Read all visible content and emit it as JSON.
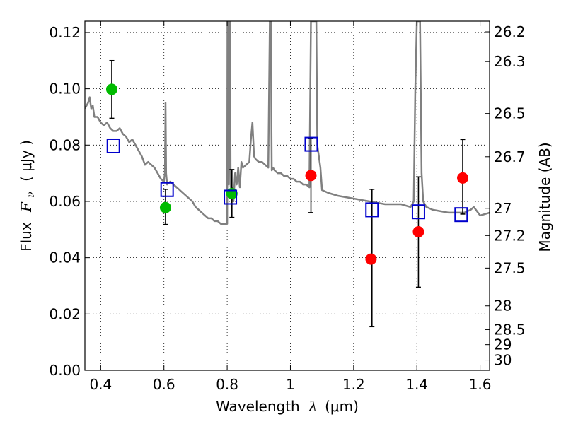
{
  "chart_data": {
    "type": "scatter",
    "xlabel": {
      "prefix": "Wavelength",
      "symbol": "λ",
      "unit": "(μm)"
    },
    "ylabel": {
      "prefix": "Flux",
      "symbol": "F",
      "subscript": "ν",
      "unit": "( μJy )"
    },
    "y2label": "Magnitude (AB)",
    "xlim": [
      0.35,
      1.63
    ],
    "ylim": [
      0.0,
      0.124
    ],
    "grid": true,
    "x_ticks": [
      "0.4",
      "0.6",
      "0.8",
      "1",
      "1.2",
      "1.4",
      "1.6"
    ],
    "x_tick_values": [
      0.4,
      0.6,
      0.8,
      1.0,
      1.2,
      1.4,
      1.6
    ],
    "y_ticks": [
      "0.00",
      "0.02",
      "0.04",
      "0.06",
      "0.08",
      "0.10",
      "0.12"
    ],
    "y_tick_values": [
      0.0,
      0.02,
      0.04,
      0.06,
      0.08,
      0.1,
      0.12
    ],
    "y2_ticks": [
      "26.2",
      "26.3",
      "26.5",
      "26.7",
      "27",
      "27.2",
      "27.5",
      "28",
      "28.5",
      "29",
      "30"
    ],
    "y2_tick_values": [
      26.2,
      26.3,
      26.5,
      26.7,
      27.0,
      27.2,
      27.5,
      28.0,
      28.5,
      29.0,
      30.0
    ],
    "y2_zero_point_mag": 23.9,
    "series": [
      {
        "kind": "line",
        "color": "#808080",
        "x": [
          0.35,
          0.36,
          0.365,
          0.37,
          0.375,
          0.38,
          0.39,
          0.4,
          0.41,
          0.42,
          0.43,
          0.44,
          0.45,
          0.46,
          0.47,
          0.48,
          0.49,
          0.5,
          0.51,
          0.52,
          0.53,
          0.54,
          0.55,
          0.56,
          0.57,
          0.58,
          0.59,
          0.6,
          0.603,
          0.605,
          0.607,
          0.61,
          0.62,
          0.63,
          0.64,
          0.65,
          0.66,
          0.67,
          0.68,
          0.69,
          0.7,
          0.71,
          0.72,
          0.73,
          0.74,
          0.75,
          0.76,
          0.77,
          0.78,
          0.79,
          0.8,
          0.801,
          0.803,
          0.805,
          0.807,
          0.809,
          0.811,
          0.815,
          0.82,
          0.825,
          0.83,
          0.835,
          0.84,
          0.845,
          0.85,
          0.86,
          0.87,
          0.875,
          0.88,
          0.885,
          0.89,
          0.9,
          0.91,
          0.92,
          0.93,
          0.935,
          0.938,
          0.941,
          0.945,
          0.95,
          0.96,
          0.97,
          0.98,
          0.99,
          1.0,
          1.01,
          1.02,
          1.03,
          1.04,
          1.05,
          1.06,
          1.065,
          1.068,
          1.072,
          1.075,
          1.078,
          1.082,
          1.085,
          1.09,
          1.095,
          1.1,
          1.12,
          1.15,
          1.2,
          1.25,
          1.3,
          1.35,
          1.38,
          1.39,
          1.395,
          1.4,
          1.405,
          1.41,
          1.415,
          1.42,
          1.43,
          1.45,
          1.5,
          1.55,
          1.57,
          1.58,
          1.6,
          1.63
        ],
        "y": [
          0.093,
          0.095,
          0.097,
          0.093,
          0.094,
          0.09,
          0.09,
          0.088,
          0.087,
          0.088,
          0.086,
          0.085,
          0.085,
          0.086,
          0.084,
          0.083,
          0.081,
          0.082,
          0.08,
          0.078,
          0.076,
          0.073,
          0.074,
          0.073,
          0.072,
          0.07,
          0.068,
          0.067,
          0.07,
          0.095,
          0.07,
          0.066,
          0.067,
          0.066,
          0.065,
          0.064,
          0.063,
          0.062,
          0.061,
          0.06,
          0.058,
          0.057,
          0.056,
          0.055,
          0.054,
          0.054,
          0.053,
          0.053,
          0.052,
          0.052,
          0.052,
          0.124,
          0.124,
          0.066,
          0.124,
          0.124,
          0.065,
          0.065,
          0.06,
          0.07,
          0.066,
          0.072,
          0.065,
          0.074,
          0.072,
          0.073,
          0.074,
          0.082,
          0.088,
          0.076,
          0.075,
          0.074,
          0.074,
          0.073,
          0.072,
          0.124,
          0.124,
          0.071,
          0.072,
          0.071,
          0.07,
          0.07,
          0.069,
          0.069,
          0.068,
          0.068,
          0.067,
          0.067,
          0.066,
          0.066,
          0.065,
          0.124,
          0.124,
          0.124,
          0.124,
          0.124,
          0.124,
          0.08,
          0.076,
          0.072,
          0.064,
          0.063,
          0.062,
          0.061,
          0.06,
          0.059,
          0.059,
          0.058,
          0.06,
          0.1,
          0.124,
          0.124,
          0.124,
          0.07,
          0.06,
          0.058,
          0.057,
          0.056,
          0.056,
          0.057,
          0.058,
          0.055,
          0.056
        ]
      },
      {
        "kind": "points",
        "marker": "circle",
        "color": "#00bb00",
        "x": [
          0.435,
          0.605,
          0.815
        ],
        "y": [
          0.0998,
          0.0578,
          0.0628
        ]
      },
      {
        "kind": "points",
        "marker": "circle",
        "color": "#ff0000",
        "x": [
          1.065,
          1.255,
          1.405,
          1.545
        ],
        "y": [
          0.0692,
          0.0395,
          0.0492,
          0.0683
        ]
      },
      {
        "kind": "points",
        "marker": "open-square",
        "color": "#0000cc",
        "x": [
          0.44,
          0.61,
          0.81,
          1.066,
          1.258,
          1.405,
          1.54
        ],
        "y": [
          0.0797,
          0.0642,
          0.0615,
          0.0803,
          0.057,
          0.0563,
          0.0553
        ]
      },
      {
        "kind": "errorbars",
        "color": "#000000",
        "x": [
          0.435,
          0.605,
          0.815,
          1.065,
          1.258,
          1.405,
          1.545
        ],
        "ylow": [
          0.0895,
          0.0518,
          0.0543,
          0.056,
          0.0155,
          0.0295,
          0.0555
        ],
        "yhigh": [
          0.11,
          0.0643,
          0.0713,
          0.0825,
          0.0643,
          0.0687,
          0.082
        ]
      }
    ]
  }
}
